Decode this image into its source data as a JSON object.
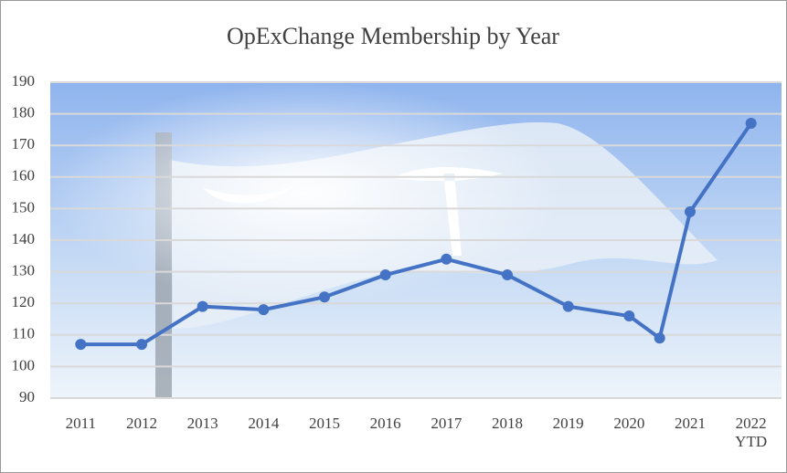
{
  "chart_data": {
    "type": "line",
    "title": "OpExChange Membership by Year",
    "x": [
      2011,
      2012,
      2013,
      2014,
      2015,
      2016,
      2017,
      2018,
      2019,
      2020,
      2020.5,
      2021,
      2022
    ],
    "values": [
      107,
      107,
      119,
      118,
      122,
      129,
      134,
      129,
      119,
      116,
      109,
      149,
      177
    ],
    "color": "#4472c4",
    "xlim": [
      2010.5,
      2022.5
    ],
    "xticks": [
      2011,
      2012,
      2013,
      2014,
      2015,
      2016,
      2017,
      2018,
      2019,
      2020,
      2021,
      {
        "value": 2022,
        "label": "2022 YTD"
      }
    ],
    "ylim": [
      90,
      190
    ],
    "yticks": [
      90,
      100,
      110,
      120,
      130,
      140,
      150,
      160,
      170,
      180,
      190
    ],
    "grid": true
  }
}
